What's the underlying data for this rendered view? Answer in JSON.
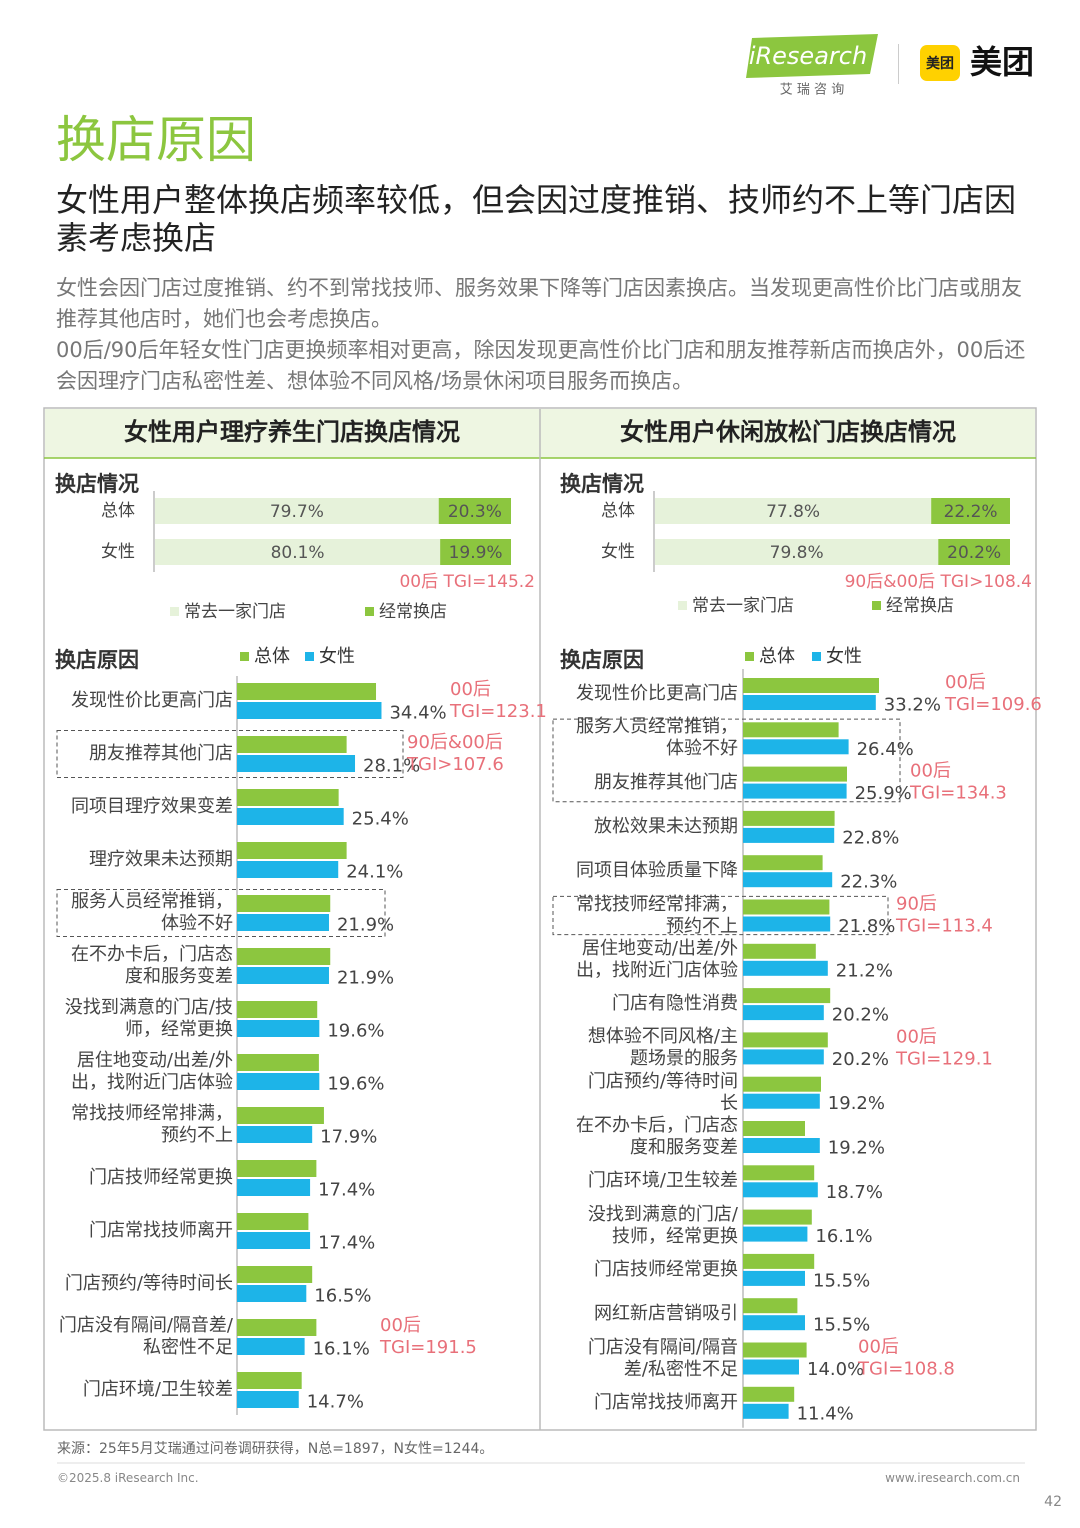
{
  "header": {
    "logo": "iResearch",
    "logo_sub": "艾 瑞 咨 询",
    "brand_icon": "美团",
    "brand": "美团",
    "title": "换店原因",
    "subtitle": "女性用户整体换店频率较低，但会因过度推销、技师约不上等门店因素考虑换店",
    "paragraphs": [
      "女性会因门店过度推销、约不到常找技师、服务效果下降等门店因素换店。当发现更高性价比门店或朋友推荐其他店时，她们也会考虑换店。",
      "00后/90后年轻女性门店更换频率相对更高，除因发现更高性价比门店和朋友推荐新店而换店外，00后还会因理疗门店私密性差、想体验不同风格/场景休闲项目服务而换店。"
    ]
  },
  "panels": [
    "女性用户理疗养生门店换店情况",
    "女性用户休闲放松门店换店情况"
  ],
  "chart_data": [
    {
      "type": "bar",
      "stacked": true,
      "title": "换店情况",
      "categories": [
        "总体",
        "女性"
      ],
      "series": [
        {
          "name": "常去一家门店",
          "color": "#e6f2da",
          "values": [
            79.7,
            80.1
          ],
          "value_labels": [
            "79.7%",
            "80.1%"
          ]
        },
        {
          "name": "经常换店",
          "color": "#8cc63f",
          "values": [
            20.3,
            19.9
          ],
          "value_labels": [
            "20.3%",
            "19.9%"
          ]
        }
      ],
      "annotations": [
        "00后 TGI=145.2"
      ]
    },
    {
      "type": "bar",
      "stacked": true,
      "title": "换店情况",
      "categories": [
        "总体",
        "女性"
      ],
      "series": [
        {
          "name": "常去一家门店",
          "color": "#e6f2da",
          "values": [
            77.8,
            79.8
          ],
          "value_labels": [
            "77.8%",
            "79.8%"
          ]
        },
        {
          "name": "经常换店",
          "color": "#8cc63f",
          "values": [
            22.2,
            20.2
          ],
          "value_labels": [
            "22.2%",
            "20.2%"
          ]
        }
      ],
      "annotations": [
        "90后&00后 TGI>108.4"
      ]
    },
    {
      "type": "bar",
      "stacked": false,
      "title": "换店原因",
      "categories": [
        "发现性价比更高门店",
        "朋友推荐其他门店",
        "同项目理疗效果变差",
        "理疗效果未达预期",
        "服务人员经常推销，体验不好",
        "在不办卡后，门店态度和服务变差",
        "没找到满意的门店/技师，经常更换",
        "居住地变动/出差/外出，找附近门店体验",
        "常找技师经常排满，预约不上",
        "门店技师经常更换",
        "门店常找技师离开",
        "门店预约/等待时间长",
        "门店没有隔间/隔音差/私密性不足",
        "门店环境/卫生较差"
      ],
      "series": [
        {
          "name": "总体",
          "color": "#8cc63f",
          "values": [
            33.1,
            26.1,
            24.2,
            26.1,
            22.2,
            22.2,
            19.1,
            19.5,
            20.7,
            18.9,
            17.0,
            17.9,
            18.9,
            15.4
          ]
        },
        {
          "name": "女性",
          "color": "#1db4e8",
          "values": [
            34.4,
            28.1,
            25.4,
            24.1,
            21.9,
            21.9,
            19.6,
            19.6,
            17.9,
            17.4,
            17.4,
            16.5,
            16.1,
            14.7
          ],
          "value_labels": [
            "34.4%",
            "28.1%",
            "25.4%",
            "24.1%",
            "21.9%",
            "21.9%",
            "19.6%",
            "19.6%",
            "17.9%",
            "17.4%",
            "17.4%",
            "16.5%",
            "16.1%",
            "14.7%"
          ]
        }
      ],
      "annotations": [
        [
          "00后",
          "TGI=123.1"
        ],
        [
          "90后&00后",
          "TGI>107.6"
        ],
        [
          "00后",
          "TGI=191.5"
        ]
      ]
    },
    {
      "type": "bar",
      "stacked": false,
      "title": "换店原因",
      "categories": [
        "发现性价比更高门店",
        "服务人员经常推销，体验不好",
        "朋友推荐其他门店",
        "放松效果未达预期",
        "同项目体验质量下降",
        "常找技师经常排满，预约不上",
        "居住地变动/出差/外出，找附近门店体验",
        "门店有隐性消费",
        "想体验不同风格/主题场景的服务",
        "门店预约/等待时间长",
        "在不办卡后，门店态度和服务变差",
        "门店环境/卫生较差",
        "没找到满意的门店/技师，经常更换",
        "门店技师经常更换",
        "网红新店营销吸引",
        "门店没有隔间/隔音差/私密性不足",
        "门店常找技师离开"
      ],
      "series": [
        {
          "name": "总体",
          "color": "#8cc63f",
          "values": [
            34.0,
            23.9,
            26.0,
            22.9,
            19.9,
            21.6,
            18.2,
            21.8,
            21.2,
            19.5,
            15.5,
            17.8,
            17.2,
            17.8,
            13.6,
            15.9,
            12.8
          ]
        },
        {
          "name": "女性",
          "color": "#1db4e8",
          "values": [
            33.2,
            26.4,
            25.9,
            22.8,
            22.3,
            21.8,
            21.2,
            20.2,
            20.2,
            19.2,
            19.2,
            18.7,
            16.1,
            15.5,
            15.5,
            14.0,
            11.4
          ],
          "value_labels": [
            "33.2%",
            "26.4%",
            "25.9%",
            "22.8%",
            "22.3%",
            "21.8%",
            "21.2%",
            "20.2%",
            "20.2%",
            "19.2%",
            "19.2%",
            "18.7%",
            "16.1%",
            "15.5%",
            "15.5%",
            "14.0%",
            "11.4%"
          ]
        }
      ],
      "annotations": [
        [
          "00后",
          "TGI=109.6"
        ],
        [
          "00后",
          "TGI=134.3"
        ],
        [
          "90后",
          "TGI=113.4"
        ],
        [
          "00后",
          "TGI=129.1"
        ],
        [
          "00后",
          "TGI=108.8"
        ]
      ]
    }
  ],
  "footer": {
    "source": "来源：25年5月艾瑞通过问卷调研获得，N总=1897，N女性=1244。",
    "copyright": "©2025.8 iResearch Inc.",
    "url": "www.iresearch.com.cn",
    "page": "42"
  }
}
